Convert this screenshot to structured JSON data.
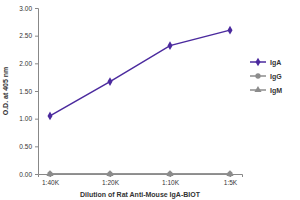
{
  "chart_data": {
    "type": "line",
    "x_label": "Dilution of Rat Anti-Mouse IgA-BIOT",
    "y_label": "O.D. at 405 nm",
    "categories": [
      "1:40K",
      "1:20K",
      "1:10K",
      "1:5K"
    ],
    "series": [
      {
        "name": "IgA",
        "color": "#4b2a9e",
        "marker": "diamond",
        "values": [
          1.05,
          1.67,
          2.32,
          2.6
        ]
      },
      {
        "name": "IgG",
        "color": "#8c8c8c",
        "marker": "circle",
        "values": [
          0.0,
          0.0,
          0.0,
          0.0
        ]
      },
      {
        "name": "IgM",
        "color": "#8c8c8c",
        "marker": "triangle",
        "values": [
          0.0,
          0.0,
          0.0,
          0.0
        ]
      }
    ],
    "ylim": [
      0,
      3
    ],
    "yticks": [
      {
        "value": 0,
        "label": "0.00"
      },
      {
        "value": 0.5,
        "label": "0.50"
      },
      {
        "value": 1,
        "label": "1.00"
      },
      {
        "value": 1.5,
        "label": "1.50"
      },
      {
        "value": 2,
        "label": "2.00"
      },
      {
        "value": 2.5,
        "label": "2.50"
      },
      {
        "value": 3,
        "label": "3.00"
      }
    ],
    "grid": false,
    "legend": "right"
  }
}
